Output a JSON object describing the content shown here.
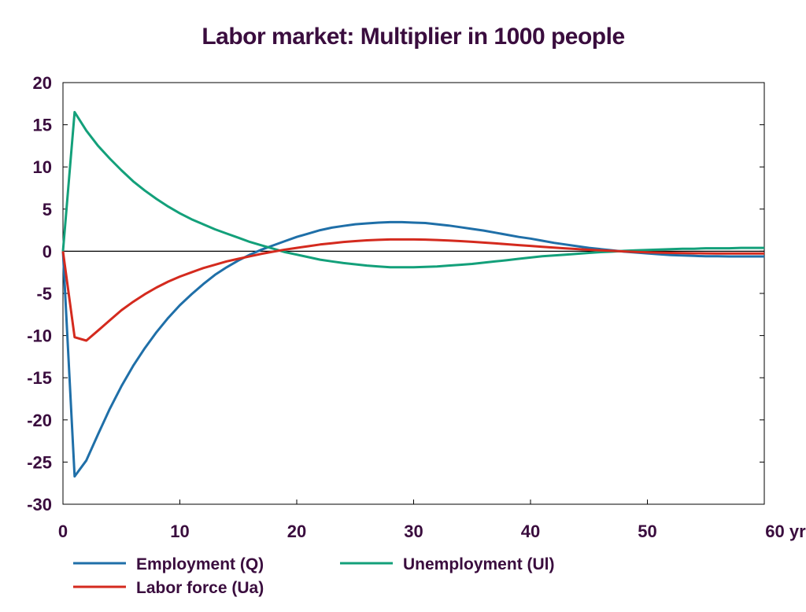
{
  "chart_data": {
    "type": "line",
    "title": "Labor market: Multiplier in 1000 people",
    "xlabel": "",
    "ylabel": "",
    "x_unit": "yr",
    "xlim": [
      0,
      60
    ],
    "ylim": [
      -30,
      20
    ],
    "x_ticks": [
      0,
      10,
      20,
      30,
      40,
      50,
      60
    ],
    "y_ticks": [
      20,
      15,
      10,
      5,
      0,
      -5,
      -10,
      -15,
      -20,
      -25,
      -30
    ],
    "grid": false,
    "zero_line": true,
    "legend_position": "bottom",
    "x": [
      0,
      1,
      2,
      3,
      4,
      5,
      6,
      7,
      8,
      9,
      10,
      11,
      12,
      13,
      14,
      15,
      16,
      17,
      18,
      19,
      20,
      21,
      22,
      23,
      24,
      25,
      26,
      27,
      28,
      29,
      30,
      31,
      32,
      33,
      34,
      35,
      36,
      37,
      38,
      39,
      40,
      41,
      42,
      43,
      44,
      45,
      46,
      47,
      48,
      49,
      50,
      51,
      52,
      53,
      54,
      55,
      56,
      57,
      58,
      59,
      60
    ],
    "series": [
      {
        "name": "Employment (Q)",
        "color": "#1f6fa8",
        "values": [
          0,
          -26.7,
          -24.8,
          -21.7,
          -18.7,
          -16.0,
          -13.6,
          -11.5,
          -9.6,
          -7.9,
          -6.4,
          -5.1,
          -3.9,
          -2.8,
          -1.9,
          -1.1,
          -0.4,
          0.2,
          0.7,
          1.2,
          1.7,
          2.1,
          2.5,
          2.8,
          3.0,
          3.2,
          3.3,
          3.4,
          3.45,
          3.45,
          3.4,
          3.35,
          3.2,
          3.05,
          2.85,
          2.65,
          2.45,
          2.2,
          1.95,
          1.7,
          1.5,
          1.25,
          1.0,
          0.8,
          0.6,
          0.4,
          0.25,
          0.1,
          -0.05,
          -0.15,
          -0.25,
          -0.35,
          -0.45,
          -0.5,
          -0.55,
          -0.6,
          -0.6,
          -0.62,
          -0.62,
          -0.62,
          -0.62
        ]
      },
      {
        "name": "Unemployment (Ul)",
        "color": "#13a07a",
        "values": [
          0,
          16.5,
          14.3,
          12.5,
          11.0,
          9.6,
          8.3,
          7.2,
          6.2,
          5.3,
          4.5,
          3.8,
          3.2,
          2.6,
          2.1,
          1.6,
          1.1,
          0.7,
          0.3,
          -0.1,
          -0.4,
          -0.7,
          -1.0,
          -1.2,
          -1.4,
          -1.55,
          -1.7,
          -1.8,
          -1.9,
          -1.9,
          -1.9,
          -1.85,
          -1.8,
          -1.7,
          -1.6,
          -1.5,
          -1.35,
          -1.2,
          -1.05,
          -0.9,
          -0.75,
          -0.6,
          -0.5,
          -0.4,
          -0.3,
          -0.2,
          -0.1,
          -0.05,
          0.05,
          0.1,
          0.15,
          0.2,
          0.25,
          0.3,
          0.3,
          0.35,
          0.35,
          0.35,
          0.4,
          0.4,
          0.4
        ]
      },
      {
        "name": "Labor force (Ua)",
        "color": "#d42a1e",
        "values": [
          0,
          -10.2,
          -10.6,
          -9.4,
          -8.2,
          -7.0,
          -6.0,
          -5.1,
          -4.3,
          -3.6,
          -3.0,
          -2.5,
          -2.0,
          -1.6,
          -1.2,
          -0.9,
          -0.6,
          -0.3,
          -0.05,
          0.2,
          0.4,
          0.6,
          0.8,
          0.95,
          1.1,
          1.2,
          1.3,
          1.35,
          1.4,
          1.4,
          1.4,
          1.38,
          1.33,
          1.27,
          1.2,
          1.12,
          1.03,
          0.93,
          0.83,
          0.73,
          0.63,
          0.53,
          0.43,
          0.34,
          0.26,
          0.18,
          0.1,
          0.05,
          -0.02,
          -0.08,
          -0.12,
          -0.16,
          -0.2,
          -0.22,
          -0.24,
          -0.25,
          -0.26,
          -0.27,
          -0.27,
          -0.27,
          -0.27
        ]
      }
    ]
  }
}
